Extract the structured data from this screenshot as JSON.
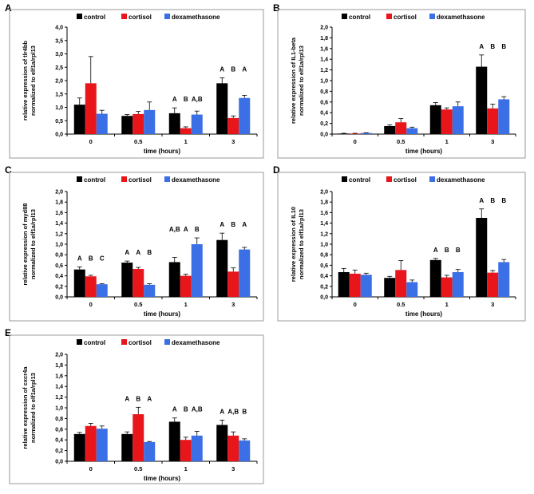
{
  "chart_data": [
    {
      "panel": "A",
      "type": "bar",
      "categories": [
        "0",
        "0.5",
        "1",
        "3"
      ],
      "xlabel": "time (hours)",
      "ylabel": "relative expression of tlr4bb normalized to elf1a/rpl13",
      "ylim": [
        0,
        4.0
      ],
      "yticks": [
        "0,0",
        "0,5",
        "1,0",
        "1,5",
        "2,0",
        "2,5",
        "3,0",
        "3,5",
        "4,0"
      ],
      "ytick_values": [
        0,
        0.5,
        1.0,
        1.5,
        2.0,
        2.5,
        3.0,
        3.5,
        4.0
      ],
      "legend": [
        "control",
        "cortisol",
        "dexamethasone"
      ],
      "series": [
        {
          "name": "control",
          "color": "#000000",
          "values": [
            1.1,
            0.68,
            0.78,
            1.9
          ],
          "errors": [
            0.25,
            0.05,
            0.2,
            0.2
          ]
        },
        {
          "name": "cortisol",
          "color": "#e8151b",
          "values": [
            1.9,
            0.75,
            0.22,
            0.6
          ],
          "errors": [
            1.0,
            0.1,
            0.05,
            0.08
          ]
        },
        {
          "name": "dexamethasone",
          "color": "#3b6fe5",
          "values": [
            0.76,
            0.9,
            0.73,
            1.35
          ],
          "errors": [
            0.13,
            0.3,
            0.13,
            0.1
          ]
        }
      ],
      "annotations": [
        {
          "category": 2,
          "labels": [
            "A",
            "B",
            "A,B"
          ]
        },
        {
          "category": 3,
          "labels": [
            "A",
            "B",
            "A"
          ]
        }
      ]
    },
    {
      "panel": "B",
      "type": "bar",
      "categories": [
        "0",
        "0.5",
        "1",
        "3"
      ],
      "xlabel": "time (hours)",
      "ylabel": "relative expression of IL1-beta normalized to elf1a/rpl13",
      "ylim": [
        0,
        2.0
      ],
      "yticks": [
        "0,0",
        "0,2",
        "0,4",
        "0,6",
        "0,8",
        "1,0",
        "1,2",
        "1,4",
        "1,6",
        "1,8",
        "2,0"
      ],
      "ytick_values": [
        0,
        0.2,
        0.4,
        0.6,
        0.8,
        1.0,
        1.2,
        1.4,
        1.6,
        1.8,
        2.0
      ],
      "legend": [
        "control",
        "cortisol",
        "dexamethasone"
      ],
      "series": [
        {
          "name": "control",
          "color": "#000000",
          "values": [
            0.01,
            0.15,
            0.54,
            1.26
          ],
          "errors": [
            0.005,
            0.02,
            0.05,
            0.22
          ]
        },
        {
          "name": "cortisol",
          "color": "#e8151b",
          "values": [
            0.01,
            0.22,
            0.46,
            0.48
          ],
          "errors": [
            0.005,
            0.07,
            0.03,
            0.08
          ]
        },
        {
          "name": "dexamethasone",
          "color": "#3b6fe5",
          "values": [
            0.02,
            0.11,
            0.52,
            0.65
          ],
          "errors": [
            0.005,
            0.02,
            0.08,
            0.05
          ]
        }
      ],
      "annotations": [
        {
          "category": 3,
          "labels": [
            "A",
            "B",
            "B"
          ]
        }
      ]
    },
    {
      "panel": "C",
      "type": "bar",
      "categories": [
        "0",
        "0.5",
        "1",
        "3"
      ],
      "xlabel": "time (hours)",
      "ylabel": "relative expression of myd88 normalized to elf1a/rpl13",
      "ylim": [
        0,
        2.0
      ],
      "yticks": [
        "0,0",
        "0,2",
        "0,4",
        "0,6",
        "0,8",
        "1,0",
        "1,2",
        "1,4",
        "1,6",
        "1,8",
        "2,0"
      ],
      "ytick_values": [
        0,
        0.2,
        0.4,
        0.6,
        0.8,
        1.0,
        1.2,
        1.4,
        1.6,
        1.8,
        2.0
      ],
      "legend": [
        "control",
        "cortisol",
        "dexamethasone"
      ],
      "series": [
        {
          "name": "control",
          "color": "#000000",
          "values": [
            0.52,
            0.65,
            0.66,
            1.08
          ],
          "errors": [
            0.05,
            0.03,
            0.09,
            0.13
          ]
        },
        {
          "name": "cortisol",
          "color": "#e8151b",
          "values": [
            0.39,
            0.53,
            0.4,
            0.48
          ],
          "errors": [
            0.02,
            0.03,
            0.03,
            0.07
          ]
        },
        {
          "name": "dexamethasone",
          "color": "#3b6fe5",
          "values": [
            0.24,
            0.23,
            1.0,
            0.9
          ],
          "errors": [
            0.01,
            0.02,
            0.12,
            0.04
          ]
        }
      ],
      "annotations": [
        {
          "category": 0,
          "labels": [
            "A",
            "B",
            "C"
          ]
        },
        {
          "category": 1,
          "labels": [
            "A",
            "A",
            "B"
          ]
        },
        {
          "category": 2,
          "labels": [
            "A,B",
            "A",
            "B"
          ]
        },
        {
          "category": 3,
          "labels": [
            "A",
            "B",
            "A"
          ]
        }
      ]
    },
    {
      "panel": "D",
      "type": "bar",
      "categories": [
        "0",
        "0.5",
        "1",
        "3"
      ],
      "xlabel": "time (hours)",
      "ylabel": "relative expression of IL10 normalized to elf1a/rpl13",
      "ylim": [
        0,
        2.0
      ],
      "yticks": [
        "0,0",
        "0,2",
        "0,4",
        "0,6",
        "0,8",
        "1,0",
        "1,2",
        "1,4",
        "1,6",
        "1,8",
        "2,0"
      ],
      "ytick_values": [
        0,
        0.2,
        0.4,
        0.6,
        0.8,
        1.0,
        1.2,
        1.4,
        1.6,
        1.8,
        2.0
      ],
      "legend": [
        "control",
        "cortisol",
        "dexamethasone"
      ],
      "series": [
        {
          "name": "control",
          "color": "#000000",
          "values": [
            0.47,
            0.36,
            0.7,
            1.5
          ],
          "errors": [
            0.07,
            0.03,
            0.03,
            0.17
          ]
        },
        {
          "name": "cortisol",
          "color": "#e8151b",
          "values": [
            0.44,
            0.51,
            0.37,
            0.46
          ],
          "errors": [
            0.07,
            0.18,
            0.04,
            0.04
          ]
        },
        {
          "name": "dexamethasone",
          "color": "#3b6fe5",
          "values": [
            0.42,
            0.28,
            0.47,
            0.66
          ],
          "errors": [
            0.03,
            0.04,
            0.05,
            0.05
          ]
        }
      ],
      "annotations": [
        {
          "category": 2,
          "labels": [
            "A",
            "B",
            "B"
          ]
        },
        {
          "category": 3,
          "labels": [
            "A",
            "B",
            "B"
          ]
        }
      ]
    },
    {
      "panel": "E",
      "type": "bar",
      "categories": [
        "0",
        "0.5",
        "1",
        "3"
      ],
      "xlabel": "time (hours)",
      "ylabel": "relative expression of cxcr4a normalized to elf1a/rpl13",
      "ylim": [
        0,
        2.0
      ],
      "yticks": [
        "0,0",
        "0,2",
        "0,4",
        "0,6",
        "0,8",
        "1,0",
        "1,2",
        "1,4",
        "1,6",
        "1,8",
        "2,0"
      ],
      "ytick_values": [
        0,
        0.2,
        0.4,
        0.6,
        0.8,
        1.0,
        1.2,
        1.4,
        1.6,
        1.8,
        2.0
      ],
      "legend": [
        "control",
        "cortisol",
        "dexamethasone"
      ],
      "series": [
        {
          "name": "control",
          "color": "#000000",
          "values": [
            0.51,
            0.51,
            0.74,
            0.68
          ],
          "errors": [
            0.03,
            0.04,
            0.07,
            0.09
          ]
        },
        {
          "name": "cortisol",
          "color": "#e8151b",
          "values": [
            0.66,
            0.88,
            0.4,
            0.48
          ],
          "errors": [
            0.05,
            0.13,
            0.05,
            0.07
          ]
        },
        {
          "name": "dexamethasone",
          "color": "#3b6fe5",
          "values": [
            0.61,
            0.36,
            0.48,
            0.39
          ],
          "errors": [
            0.05,
            0.01,
            0.08,
            0.03
          ]
        }
      ],
      "annotations": [
        {
          "category": 1,
          "labels": [
            "A",
            "B",
            "A"
          ]
        },
        {
          "category": 2,
          "labels": [
            "A",
            "B",
            "A,B"
          ]
        },
        {
          "category": 3,
          "labels": [
            "A",
            "A,B",
            "B"
          ]
        }
      ]
    }
  ]
}
